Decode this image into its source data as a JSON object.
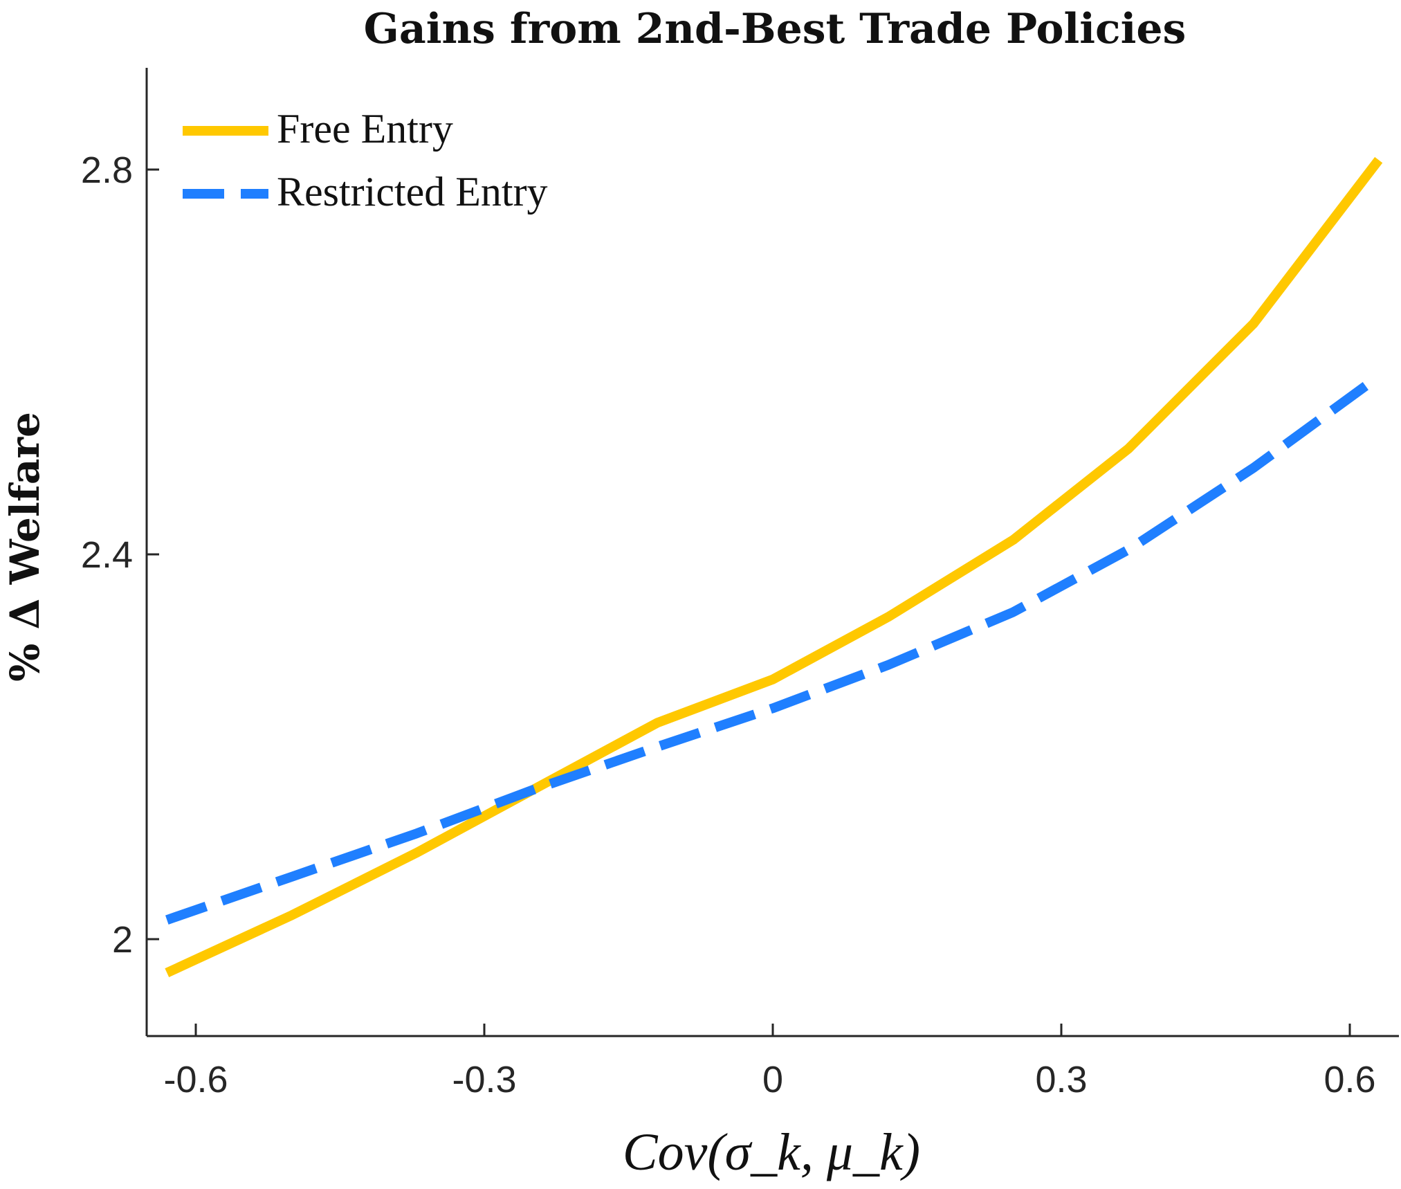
{
  "chart_data": {
    "type": "line",
    "title": "Gains from 2nd-Best Trade Policies",
    "xlabel": "Cov(σ_k, μ_k)",
    "ylabel": "% Δ Welfare",
    "xlim": [
      -0.65,
      0.65
    ],
    "ylim": [
      1.9,
      2.91
    ],
    "x_ticks": [
      -0.6,
      -0.3,
      0,
      0.3,
      0.6
    ],
    "x_tick_labels": [
      "-0.6",
      "-0.3",
      "0",
      "0.3",
      "0.6"
    ],
    "y_ticks": [
      2.0,
      2.4,
      2.8
    ],
    "y_tick_labels": [
      "2",
      "2.4",
      "2.8"
    ],
    "grid": false,
    "legend_position": "top-left",
    "series": [
      {
        "name": "Free Entry",
        "color": "#FFC800",
        "style": "solid",
        "x": [
          -0.63,
          -0.5,
          -0.37,
          -0.25,
          -0.12,
          0.0,
          0.12,
          0.25,
          0.37,
          0.5,
          0.63
        ],
        "y": [
          1.965,
          2.025,
          2.09,
          2.155,
          2.225,
          2.27,
          2.335,
          2.415,
          2.51,
          2.64,
          2.81
        ]
      },
      {
        "name": "Restricted Entry",
        "color": "#1F7FFF",
        "style": "dashed",
        "x": [
          -0.63,
          -0.5,
          -0.37,
          -0.25,
          -0.12,
          0.0,
          0.12,
          0.25,
          0.37,
          0.5,
          0.63
        ],
        "y": [
          2.02,
          2.065,
          2.11,
          2.155,
          2.2,
          2.24,
          2.285,
          2.34,
          2.405,
          2.49,
          2.585
        ]
      }
    ]
  }
}
